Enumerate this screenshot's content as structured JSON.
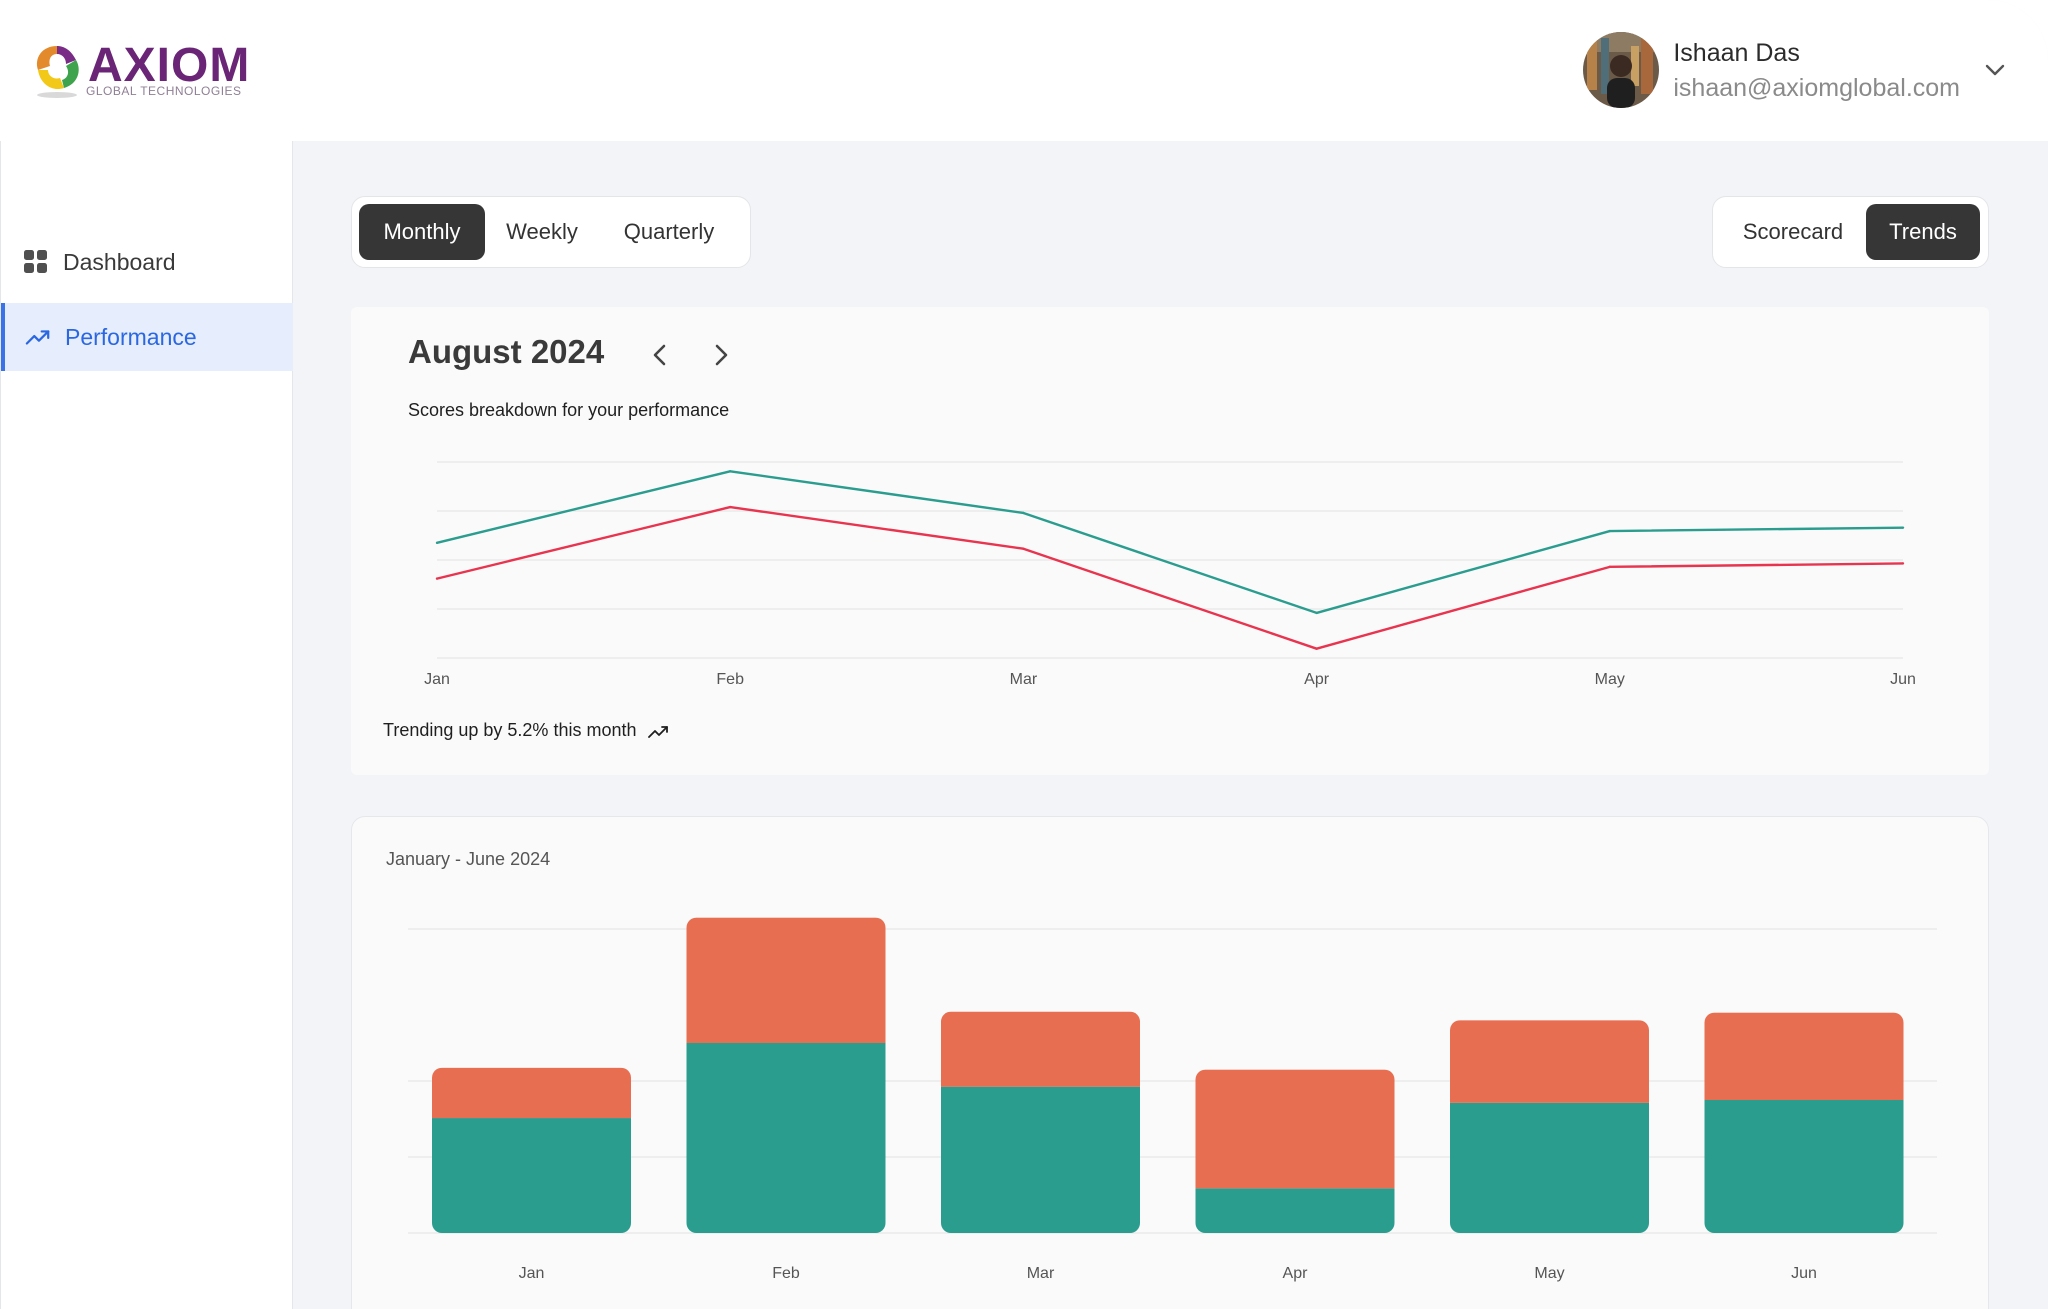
{
  "brand": {
    "name": "AXIOM",
    "tagline": "GLOBAL TECHNOLOGIES"
  },
  "user": {
    "name": "Ishaan Das",
    "email": "ishaan@axiomglobal.com"
  },
  "sidebar": {
    "items": [
      {
        "label": "Dashboard",
        "icon": "grid-icon",
        "active": false
      },
      {
        "label": "Performance",
        "icon": "trending-up-icon",
        "active": true
      }
    ]
  },
  "period_tabs": {
    "monthly": "Monthly",
    "weekly": "Weekly",
    "quarterly": "Quarterly",
    "selected": "Monthly"
  },
  "view_tabs": {
    "scorecard": "Scorecard",
    "trends": "Trends",
    "selected": "Trends"
  },
  "trend_card": {
    "title": "August 2024",
    "subtitle": "Scores breakdown for your performance",
    "footer": "Trending up by 5.2% this month"
  },
  "bar_card": {
    "title": "January - June 2024"
  },
  "colors": {
    "teal": "#2a9d8f",
    "red": "#e8344e",
    "orange": "#e76e50",
    "dark": "#363636",
    "accent": "#2a67e0"
  },
  "chart_data": [
    {
      "type": "line",
      "categories": [
        "Jan",
        "Feb",
        "Mar",
        "Apr",
        "May",
        "Jun"
      ],
      "ylim": [
        0,
        400
      ],
      "grid": true,
      "series": [
        {
          "color": "#2a9d8f",
          "values": [
            235,
            381,
            296,
            92,
            259,
            266
          ]
        },
        {
          "color": "#e8344e",
          "values": [
            162,
            308,
            223,
            19,
            186,
            193
          ]
        }
      ]
    },
    {
      "type": "bar",
      "stacked": true,
      "categories": [
        "Jan",
        "Feb",
        "Mar",
        "Apr",
        "May",
        "Jun"
      ],
      "ylim": [
        0,
        320
      ],
      "grid": true,
      "series": [
        {
          "color": "#2a9d8f",
          "values": [
            121,
            200,
            154,
            47,
            137,
            140
          ]
        },
        {
          "color": "#e76e50",
          "values": [
            53,
            132,
            79,
            125,
            87,
            92
          ]
        }
      ]
    }
  ]
}
